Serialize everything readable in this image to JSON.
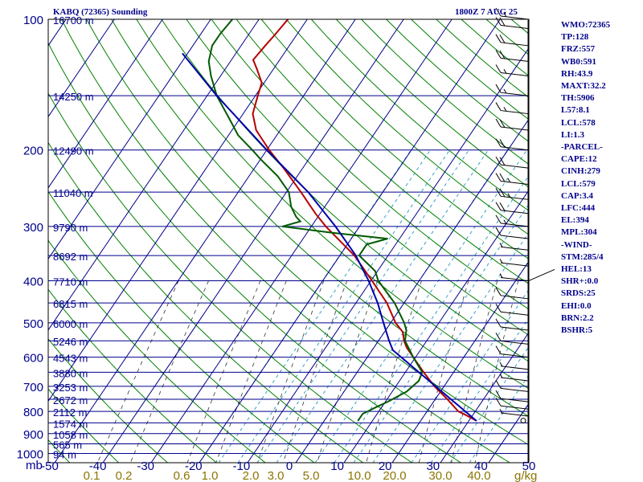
{
  "header": {
    "station": "KABQ (72365) Sounding",
    "time": "1800Z  7 AUG 25"
  },
  "indices": [
    "WMO:72365",
    "TP:128",
    "FRZ:557",
    "WB0:591",
    "RH:43.9",
    "MAXT:32.2",
    "TH:5906",
    "L57:8.1",
    "LCL:578",
    "LI:1.3",
    "-PARCEL-",
    "CAPE:12",
    "CINH:279",
    "LCL:579",
    "CAP:3.4",
    "LFC:444",
    "EL:394",
    "MPL:304",
    "-WIND-",
    "STM:285/4",
    "HEL:13",
    "SHR+:0.0",
    "SRDS:25",
    "EHI:0.0",
    "BRN:2.2",
    "BSHR:5"
  ],
  "axes": {
    "mb_label": "mb",
    "pressure_ticks": [
      100,
      200,
      300,
      400,
      500,
      600,
      700,
      800,
      900,
      1000
    ],
    "temp_ticks": [
      -50,
      -40,
      -30,
      -20,
      -10,
      0,
      10,
      20,
      30,
      40,
      50
    ],
    "mixing_ratio_unit": "g/kg",
    "mixing_ratio_ticks": [
      "0.1",
      "0.2",
      "0.6",
      "1.0",
      "2.0",
      "3.0",
      "5.0",
      "10.0",
      "20.0",
      "30.0",
      "40.0"
    ]
  },
  "height_labels": [
    {
      "p": 100,
      "text": "16700 m"
    },
    {
      "p": 150,
      "text": "14250 m"
    },
    {
      "p": 200,
      "text": "12490 m"
    },
    {
      "p": 250,
      "text": "11040 m"
    },
    {
      "p": 300,
      "text": "9790 m"
    },
    {
      "p": 350,
      "text": "8692 m"
    },
    {
      "p": 400,
      "text": "7710 m"
    },
    {
      "p": 450,
      "text": "6815 m"
    },
    {
      "p": 500,
      "text": "6000 m"
    },
    {
      "p": 550,
      "text": "5246 m"
    },
    {
      "p": 600,
      "text": "4543 m"
    },
    {
      "p": 650,
      "text": "3880 m"
    },
    {
      "p": 700,
      "text": "3253 m"
    },
    {
      "p": 750,
      "text": "2672 m"
    },
    {
      "p": 800,
      "text": "2112 m"
    },
    {
      "p": 850,
      "text": "1574 m"
    },
    {
      "p": 900,
      "text": "1058 m"
    },
    {
      "p": 950,
      "text": "565 m"
    },
    {
      "p": 1000,
      "text": "94 m"
    }
  ],
  "colors": {
    "isobar": "#00008b",
    "isotherm": "#00008b",
    "dry_adiabat": "#008000",
    "moist_adiabat": "#33a0c8",
    "mixing_ratio": "#333333",
    "temperature": "#b40000",
    "dewpoint": "#005a00",
    "parcel": "#0000aa",
    "mixing_label": "#8b7500"
  },
  "chart_data": {
    "type": "skew-t",
    "title": "KABQ (72365) Sounding",
    "subtitle": "1800Z  7 AUG 25",
    "series": [
      {
        "name": "Temperature",
        "points": [
          [
            840,
            31.5
          ],
          [
            815,
            28.5
          ],
          [
            800,
            26.5
          ],
          [
            750,
            22.5
          ],
          [
            700,
            18.0
          ],
          [
            650,
            13.8
          ],
          [
            600,
            9.5
          ],
          [
            570,
            6.8
          ],
          [
            550,
            5.3
          ],
          [
            525,
            3.8
          ],
          [
            500,
            1.0
          ],
          [
            450,
            -3.6
          ],
          [
            400,
            -9.8
          ],
          [
            350,
            -17.0
          ],
          [
            300,
            -27.0
          ],
          [
            280,
            -31.0
          ],
          [
            250,
            -37.0
          ],
          [
            220,
            -44.0
          ],
          [
            200,
            -49.5
          ],
          [
            180,
            -55.0
          ],
          [
            165,
            -58.0
          ],
          [
            150,
            -59.5
          ],
          [
            140,
            -60.5
          ],
          [
            130,
            -63.5
          ],
          [
            124,
            -65.5
          ],
          [
            115,
            -65.0
          ],
          [
            108,
            -64.5
          ],
          [
            100,
            -64.0
          ]
        ]
      },
      {
        "name": "Dewpoint",
        "points": [
          [
            840,
            7.0
          ],
          [
            810,
            7.0
          ],
          [
            780,
            9.0
          ],
          [
            760,
            10.5
          ],
          [
            720,
            13.0
          ],
          [
            680,
            14.0
          ],
          [
            650,
            13.5
          ],
          [
            600,
            9.5
          ],
          [
            550,
            5.5
          ],
          [
            520,
            4.3
          ],
          [
            500,
            2.8
          ],
          [
            450,
            -2.0
          ],
          [
            400,
            -8.5
          ],
          [
            380,
            -10.5
          ],
          [
            350,
            -16.0
          ],
          [
            330,
            -16.0
          ],
          [
            320,
            -12.5
          ],
          [
            310,
            -25.0
          ],
          [
            300,
            -36.0
          ],
          [
            292,
            -33.0
          ],
          [
            285,
            -34.5
          ],
          [
            270,
            -37.0
          ],
          [
            250,
            -39.5
          ],
          [
            230,
            -44.0
          ],
          [
            210,
            -50.0
          ],
          [
            200,
            -53.0
          ],
          [
            185,
            -58.0
          ],
          [
            170,
            -62.0
          ],
          [
            150,
            -68.0
          ],
          [
            135,
            -72.0
          ],
          [
            125,
            -74.5
          ],
          [
            115,
            -76.0
          ],
          [
            108,
            -76.0
          ],
          [
            100,
            -75.5
          ]
        ]
      },
      {
        "name": "Parcel",
        "points": [
          [
            840,
            31.5
          ],
          [
            578,
            4.3
          ],
          [
            550,
            2.2
          ],
          [
            500,
            -1.5
          ],
          [
            450,
            -5.5
          ],
          [
            400,
            -10.5
          ],
          [
            350,
            -16.7
          ],
          [
            300,
            -25.0
          ],
          [
            250,
            -35.5
          ],
          [
            200,
            -50.0
          ],
          [
            150,
            -68.0
          ],
          [
            120,
            -81.0
          ]
        ]
      }
    ],
    "wind_barbs": [
      {
        "p": 840,
        "spd": 0
      },
      {
        "p": 820,
        "spd": 5
      },
      {
        "p": 790,
        "spd": 10
      },
      {
        "p": 760,
        "spd": 10
      },
      {
        "p": 720,
        "spd": 10
      },
      {
        "p": 680,
        "spd": 5
      },
      {
        "p": 640,
        "spd": 5
      },
      {
        "p": 600,
        "spd": 10
      },
      {
        "p": 560,
        "spd": 10
      },
      {
        "p": 520,
        "spd": 10
      },
      {
        "p": 480,
        "spd": 10
      },
      {
        "p": 440,
        "spd": 10
      },
      {
        "p": 400,
        "spd": 5
      },
      {
        "p": 370,
        "spd": 5
      },
      {
        "p": 340,
        "spd": 5
      },
      {
        "p": 320,
        "spd": 10
      },
      {
        "p": 300,
        "spd": 15
      },
      {
        "p": 280,
        "spd": 20
      },
      {
        "p": 260,
        "spd": 25
      },
      {
        "p": 240,
        "spd": 25
      },
      {
        "p": 220,
        "spd": 20
      },
      {
        "p": 200,
        "spd": 20
      },
      {
        "p": 180,
        "spd": 20
      },
      {
        "p": 165,
        "spd": 15
      },
      {
        "p": 150,
        "spd": 15
      },
      {
        "p": 135,
        "spd": 15
      },
      {
        "p": 125,
        "spd": 20
      },
      {
        "p": 115,
        "spd": 20
      },
      {
        "p": 105,
        "spd": 20
      },
      {
        "p": 100,
        "spd": 15
      }
    ],
    "hodograph_barb": {
      "p": 400,
      "spd": 10
    },
    "ylim": [
      1050,
      100
    ],
    "xlim": [
      -50,
      50
    ],
    "grid": true
  }
}
